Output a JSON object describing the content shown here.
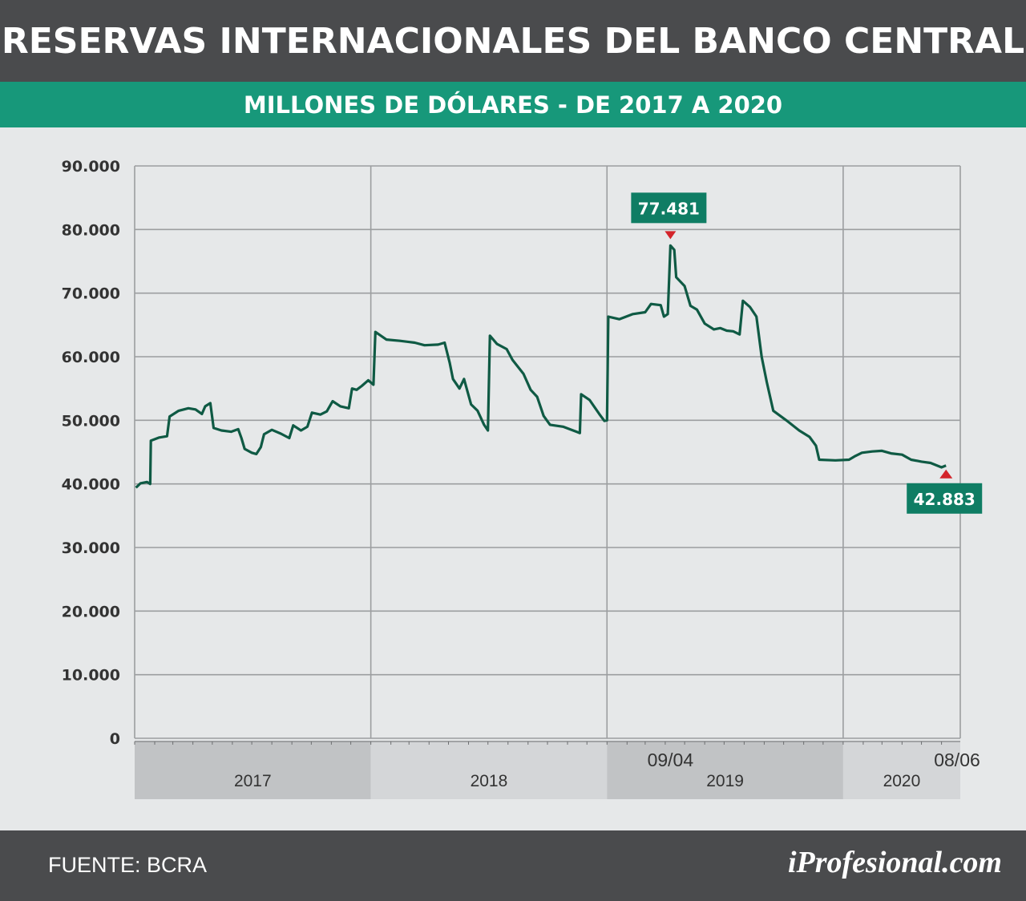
{
  "header": {
    "title": "RESERVAS INTERNACIONALES DEL BANCO CENTRAL"
  },
  "subheader": {
    "subtitle": "MILLONES DE DÓLARES - DE 2017 A 2020"
  },
  "footer": {
    "source": "FUENTE: BCRA",
    "brand": "iProfesional.com"
  },
  "colors": {
    "line": "#0f5a44",
    "accent": "#17987a",
    "callout": "#0f7d64",
    "marker": "#d3242a",
    "header_bg": "#4a4b4d"
  },
  "chart_data": {
    "type": "line",
    "title": "RESERVAS INTERNACIONALES DEL BANCO CENTRAL",
    "subtitle": "MILLONES DE DÓLARES - DE 2017 A 2020",
    "ylim": [
      0,
      90000
    ],
    "y_ticks": [
      {
        "value": 0,
        "label": "0"
      },
      {
        "value": 10000,
        "label": "10.000"
      },
      {
        "value": 20000,
        "label": "20.000"
      },
      {
        "value": 30000,
        "label": "30.000"
      },
      {
        "value": 40000,
        "label": "40.000"
      },
      {
        "value": 50000,
        "label": "50.000"
      },
      {
        "value": 60000,
        "label": "60.000"
      },
      {
        "value": 70000,
        "label": "70.000"
      },
      {
        "value": 80000,
        "label": "80.000"
      },
      {
        "value": 90000,
        "label": "90.000"
      }
    ],
    "xlim": [
      "2017-01-01",
      "2020-06-30"
    ],
    "years": [
      {
        "label": "2017",
        "start": "2017-01-01",
        "end": "2018-01-01"
      },
      {
        "label": "2018",
        "start": "2018-01-01",
        "end": "2019-01-01"
      },
      {
        "label": "2019",
        "start": "2019-01-01",
        "end": "2020-01-01"
      },
      {
        "label": "2020",
        "start": "2020-01-01",
        "end": "2020-06-30"
      }
    ],
    "grid": true,
    "series": [
      {
        "values": [
          [
            "2017-01-03",
            39400
          ],
          [
            "2017-01-10",
            40100
          ],
          [
            "2017-01-20",
            40300
          ],
          [
            "2017-01-25",
            40000
          ],
          [
            "2017-01-26",
            46800
          ],
          [
            "2017-02-08",
            47300
          ],
          [
            "2017-02-20",
            47500
          ],
          [
            "2017-02-24",
            50600
          ],
          [
            "2017-03-10",
            51500
          ],
          [
            "2017-03-25",
            51900
          ],
          [
            "2017-04-05",
            51700
          ],
          [
            "2017-04-15",
            51000
          ],
          [
            "2017-04-20",
            52200
          ],
          [
            "2017-04-28",
            52700
          ],
          [
            "2017-05-03",
            48800
          ],
          [
            "2017-05-15",
            48400
          ],
          [
            "2017-05-30",
            48200
          ],
          [
            "2017-06-10",
            48600
          ],
          [
            "2017-06-15",
            47200
          ],
          [
            "2017-06-20",
            45500
          ],
          [
            "2017-07-01",
            44900
          ],
          [
            "2017-07-08",
            44700
          ],
          [
            "2017-07-15",
            45800
          ],
          [
            "2017-07-20",
            47800
          ],
          [
            "2017-08-01",
            48500
          ],
          [
            "2017-08-15",
            47900
          ],
          [
            "2017-08-28",
            47200
          ],
          [
            "2017-09-03",
            49200
          ],
          [
            "2017-09-15",
            48400
          ],
          [
            "2017-09-25",
            49000
          ],
          [
            "2017-10-02",
            51200
          ],
          [
            "2017-10-15",
            50900
          ],
          [
            "2017-10-25",
            51400
          ],
          [
            "2017-11-03",
            53000
          ],
          [
            "2017-11-15",
            52200
          ],
          [
            "2017-11-28",
            51900
          ],
          [
            "2017-12-03",
            55000
          ],
          [
            "2017-12-10",
            54800
          ],
          [
            "2017-12-18",
            55400
          ],
          [
            "2017-12-28",
            56300
          ],
          [
            "2018-01-05",
            55600
          ],
          [
            "2018-01-08",
            63900
          ],
          [
            "2018-01-25",
            62700
          ],
          [
            "2018-02-15",
            62500
          ],
          [
            "2018-03-10",
            62200
          ],
          [
            "2018-03-25",
            61800
          ],
          [
            "2018-04-15",
            61900
          ],
          [
            "2018-04-25",
            62200
          ],
          [
            "2018-05-03",
            59000
          ],
          [
            "2018-05-08",
            56500
          ],
          [
            "2018-05-18",
            55000
          ],
          [
            "2018-05-25",
            56500
          ],
          [
            "2018-06-05",
            52500
          ],
          [
            "2018-06-15",
            51500
          ],
          [
            "2018-06-25",
            49300
          ],
          [
            "2018-07-01",
            48400
          ],
          [
            "2018-07-04",
            63300
          ],
          [
            "2018-07-15",
            62000
          ],
          [
            "2018-07-30",
            61200
          ],
          [
            "2018-08-08",
            59500
          ],
          [
            "2018-08-25",
            57300
          ],
          [
            "2018-09-05",
            54800
          ],
          [
            "2018-09-15",
            53700
          ],
          [
            "2018-09-25",
            50700
          ],
          [
            "2018-10-05",
            49300
          ],
          [
            "2018-10-25",
            49000
          ],
          [
            "2018-11-15",
            48200
          ],
          [
            "2018-11-20",
            48000
          ],
          [
            "2018-11-22",
            54100
          ],
          [
            "2018-12-05",
            53200
          ],
          [
            "2018-12-20",
            51000
          ],
          [
            "2018-12-28",
            49900
          ],
          [
            "2019-01-01",
            50000
          ],
          [
            "2019-01-03",
            66300
          ],
          [
            "2019-01-20",
            65900
          ],
          [
            "2019-02-10",
            66700
          ],
          [
            "2019-03-01",
            67000
          ],
          [
            "2019-03-10",
            68300
          ],
          [
            "2019-03-25",
            68100
          ],
          [
            "2019-03-30",
            66300
          ],
          [
            "2019-04-05",
            66700
          ],
          [
            "2019-04-09",
            77481
          ],
          [
            "2019-04-15",
            76800
          ],
          [
            "2019-04-18",
            72500
          ],
          [
            "2019-05-01",
            71100
          ],
          [
            "2019-05-10",
            68000
          ],
          [
            "2019-05-20",
            67400
          ],
          [
            "2019-06-01",
            65200
          ],
          [
            "2019-06-15",
            64300
          ],
          [
            "2019-06-25",
            64500
          ],
          [
            "2019-07-05",
            64100
          ],
          [
            "2019-07-15",
            64000
          ],
          [
            "2019-07-25",
            63500
          ],
          [
            "2019-07-30",
            68800
          ],
          [
            "2019-08-10",
            67800
          ],
          [
            "2019-08-20",
            66300
          ],
          [
            "2019-08-28",
            60000
          ],
          [
            "2019-09-05",
            56000
          ],
          [
            "2019-09-15",
            51500
          ],
          [
            "2019-10-05",
            50000
          ],
          [
            "2019-10-25",
            48400
          ],
          [
            "2019-11-10",
            47400
          ],
          [
            "2019-11-20",
            46000
          ],
          [
            "2019-11-25",
            43800
          ],
          [
            "2019-12-20",
            43700
          ],
          [
            "2020-01-10",
            43800
          ],
          [
            "2020-01-20",
            44400
          ],
          [
            "2020-01-30",
            44900
          ],
          [
            "2020-02-15",
            45100
          ],
          [
            "2020-03-01",
            45200
          ],
          [
            "2020-03-15",
            44800
          ],
          [
            "2020-04-01",
            44600
          ],
          [
            "2020-04-15",
            43800
          ],
          [
            "2020-05-01",
            43500
          ],
          [
            "2020-05-15",
            43300
          ],
          [
            "2020-06-01",
            42600
          ],
          [
            "2020-06-08",
            42883
          ]
        ]
      }
    ],
    "annotations": [
      {
        "date": "2019-04-09",
        "value": 77481,
        "label": "77.481",
        "date_label": "09/04",
        "marker": "down"
      },
      {
        "date": "2020-06-08",
        "value": 42883,
        "label": "42.883",
        "date_label": "08/06",
        "marker": "up"
      }
    ]
  }
}
